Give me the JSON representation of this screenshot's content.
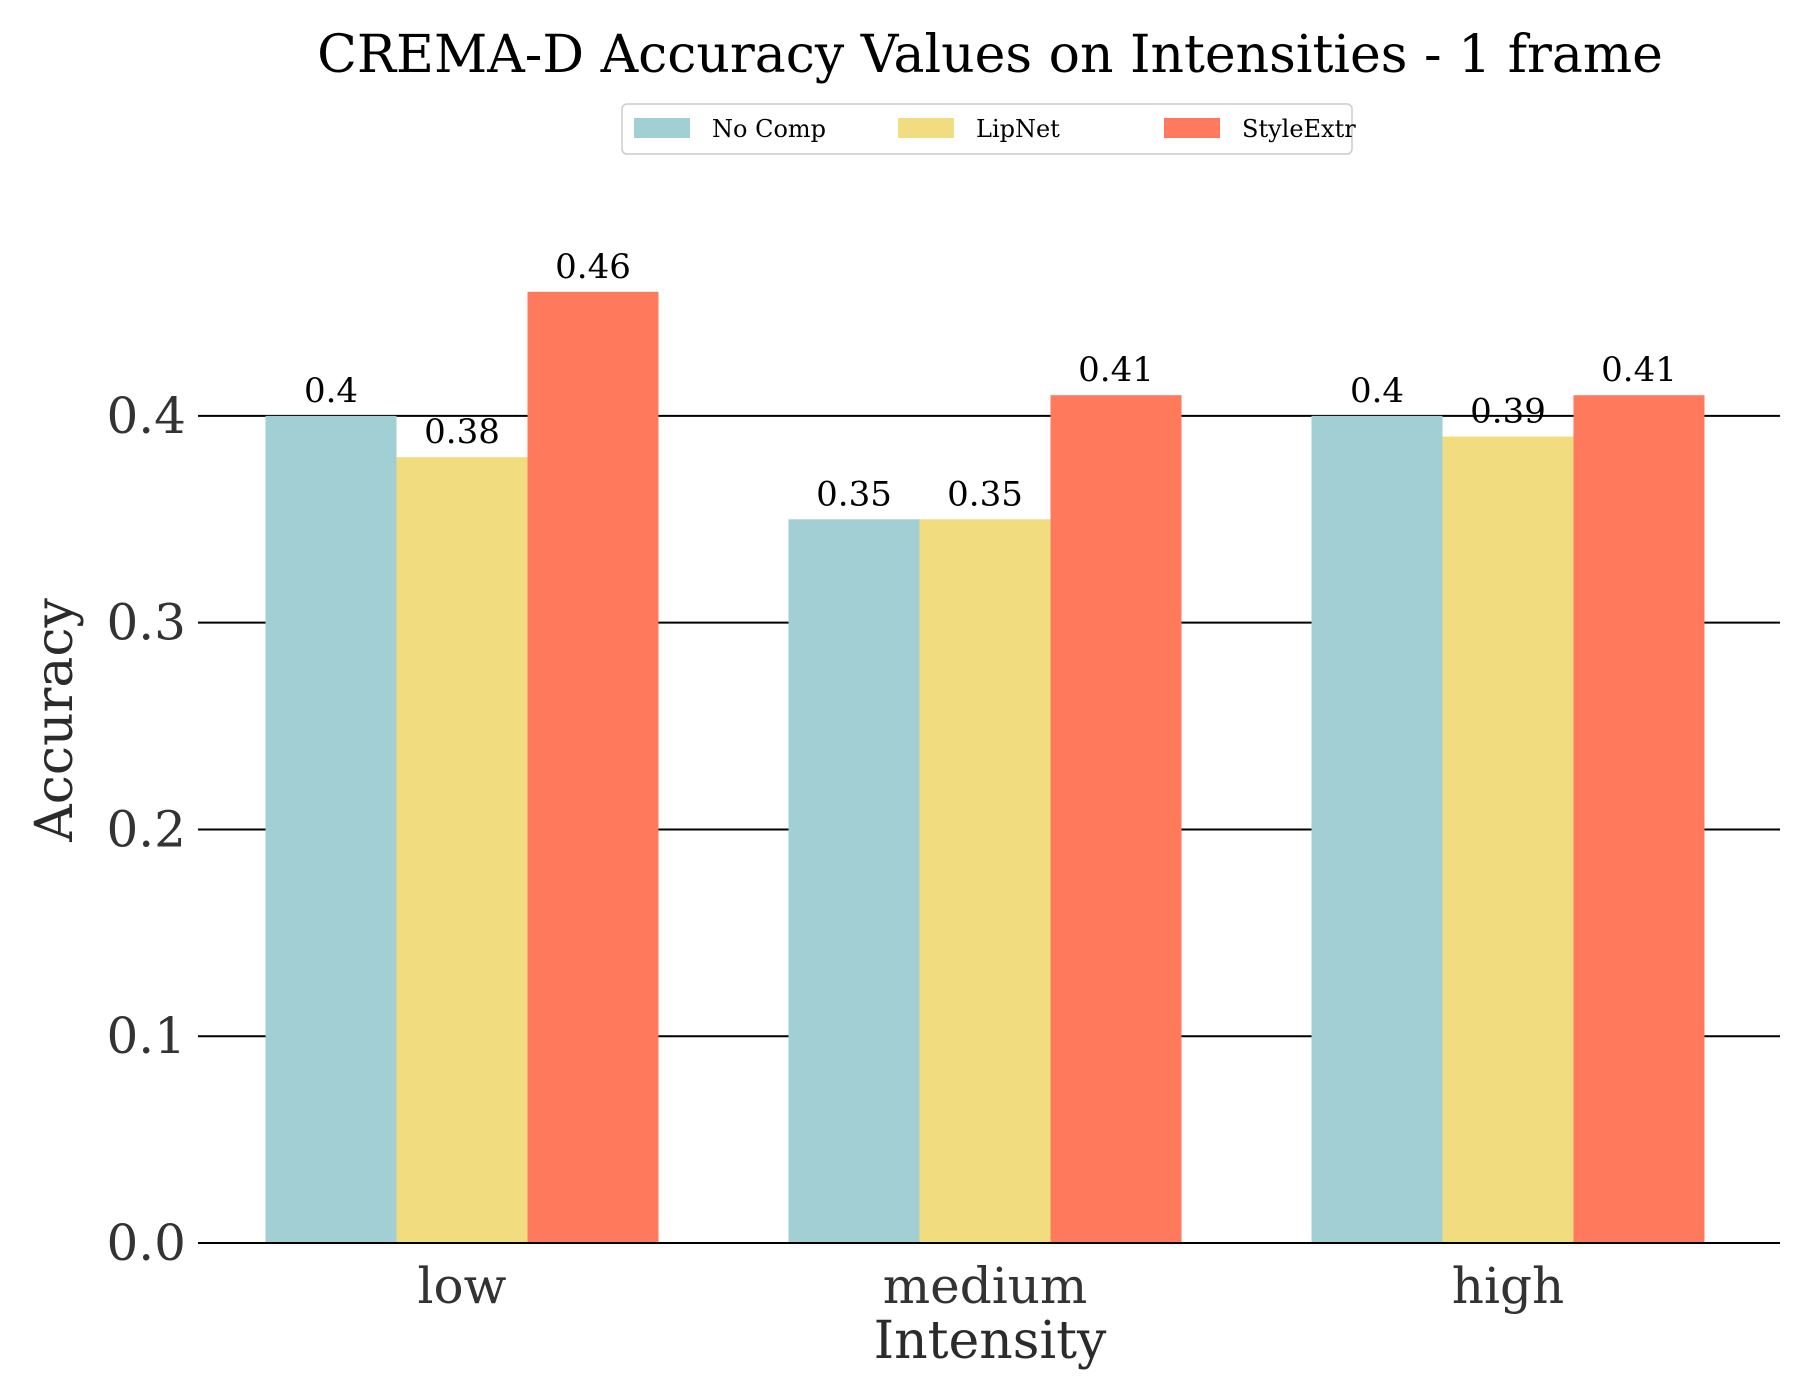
{
  "chart_data": {
    "type": "bar",
    "title": "CREMA-D Accuracy Values on Intensities - 1 frame",
    "xlabel": "Intensity",
    "ylabel": "Accuracy",
    "categories": [
      "low",
      "medium",
      "high"
    ],
    "ylim": [
      0,
      0.46
    ],
    "yticks": [
      "0.0",
      "0.1",
      "0.2",
      "0.3",
      "0.4"
    ],
    "grid": "horizontal",
    "legend_position": "top-center",
    "series": [
      {
        "name": "No Comp",
        "color": "#a2cfd3",
        "values": [
          0.4,
          0.35,
          0.4
        ],
        "labels": [
          "0.4",
          "0.35",
          "0.4"
        ]
      },
      {
        "name": "LipNet",
        "color": "#f1dd7f",
        "values": [
          0.38,
          0.35,
          0.39
        ],
        "labels": [
          "0.38",
          "0.35",
          "0.39"
        ]
      },
      {
        "name": "StyleExtr",
        "color": "#ff7a5c",
        "values": [
          0.46,
          0.41,
          0.41
        ],
        "labels": [
          "0.46",
          "0.41",
          "0.41"
        ]
      }
    ]
  }
}
